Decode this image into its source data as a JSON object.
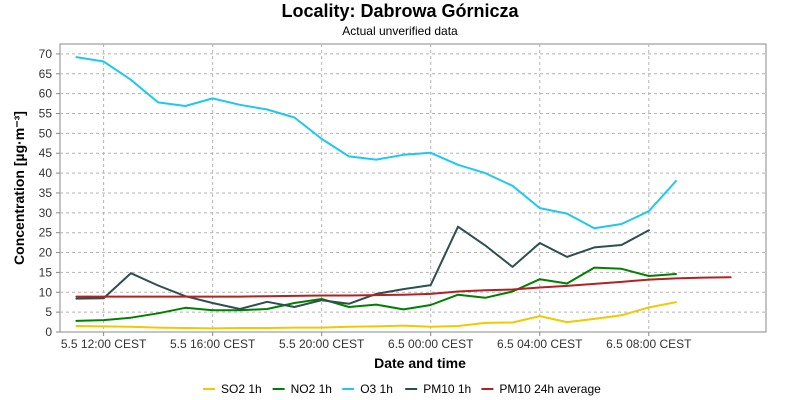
{
  "chart_data": {
    "type": "line",
    "title": "Locality: Dabrowa Górnicza",
    "subtitle": "Actual unverified data",
    "xlabel": "Date and time",
    "ylabel": "Concentration [µg·m⁻³]",
    "ylim": [
      0,
      72.5
    ],
    "yticks": [
      0,
      5,
      10,
      15,
      20,
      25,
      30,
      35,
      40,
      45,
      50,
      55,
      60,
      65,
      70
    ],
    "x_hours": [
      -1,
      0,
      1,
      2,
      3,
      4,
      5,
      6,
      7,
      8,
      9,
      10,
      11,
      12,
      13,
      14,
      15,
      16,
      17,
      18,
      19,
      20,
      21,
      22,
      23
    ],
    "xlim_hours": [
      -1.6,
      24.3
    ],
    "xticks": [
      {
        "hour": 0,
        "label": "5.5 12:00 CEST"
      },
      {
        "hour": 4,
        "label": "5.5 16:00 CEST"
      },
      {
        "hour": 8,
        "label": "5.5 20:00 CEST"
      },
      {
        "hour": 12,
        "label": "6.5 00:00 CEST"
      },
      {
        "hour": 16,
        "label": "6.5 04:00 CEST"
      },
      {
        "hour": 20,
        "label": "6.5 08:00 CEST"
      }
    ],
    "grid": true,
    "legend_position": "bottom",
    "series": [
      {
        "name": "SO2 1h",
        "color": "#f2c800",
        "values": [
          1.5,
          1.4,
          1.3,
          1.1,
          1.0,
          0.9,
          1.0,
          1.0,
          1.1,
          1.1,
          1.3,
          1.4,
          1.6,
          1.3,
          1.5,
          2.3,
          2.4,
          4.0,
          2.5,
          3.3,
          4.2,
          6.2,
          7.5,
          null,
          null
        ]
      },
      {
        "name": "NO2 1h",
        "color": "#008000",
        "values": [
          2.8,
          3.0,
          3.6,
          4.7,
          6.1,
          5.5,
          5.5,
          5.8,
          7.3,
          8.3,
          6.3,
          6.9,
          5.7,
          6.8,
          9.4,
          8.6,
          10.2,
          13.3,
          12.2,
          16.2,
          15.9,
          14.1,
          14.6,
          null,
          null
        ]
      },
      {
        "name": "O3 1h",
        "color": "#1ec8f0",
        "values": [
          69.2,
          68.1,
          63.5,
          57.8,
          56.9,
          58.8,
          57.2,
          56.0,
          54.0,
          48.6,
          44.2,
          43.4,
          44.6,
          45.1,
          42.1,
          40.0,
          36.8,
          31.2,
          29.8,
          26.1,
          27.2,
          30.4,
          38.0,
          null,
          null
        ]
      },
      {
        "name": "PM10 1h",
        "color": "#2f4f4f",
        "values": [
          8.4,
          8.5,
          14.8,
          11.7,
          9.0,
          7.3,
          5.8,
          7.6,
          6.3,
          8.0,
          7.1,
          9.6,
          10.8,
          11.8,
          26.5,
          21.8,
          16.4,
          22.4,
          18.9,
          21.3,
          21.9,
          25.6,
          null,
          null,
          null
        ]
      },
      {
        "name": "PM10 24h average",
        "color": "#b22222",
        "values": [
          8.9,
          8.9,
          8.9,
          8.9,
          8.9,
          8.9,
          8.9,
          9.0,
          9.1,
          9.2,
          9.2,
          9.3,
          9.4,
          9.6,
          10.2,
          10.5,
          10.7,
          11.2,
          11.6,
          12.1,
          12.6,
          13.2,
          13.5,
          13.7,
          13.8
        ]
      }
    ]
  }
}
